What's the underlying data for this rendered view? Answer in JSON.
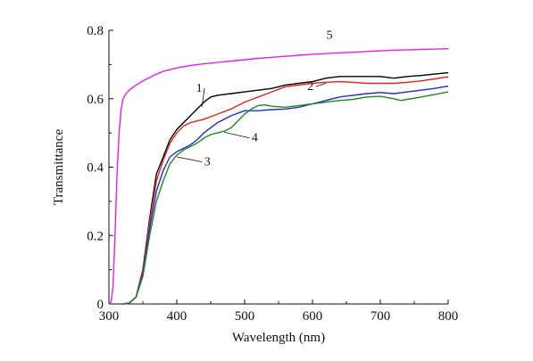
{
  "chart_data": {
    "type": "line",
    "title": "",
    "xlabel": "Wavelength (nm)",
    "ylabel": "Transmittance",
    "xlim": [
      300,
      800
    ],
    "ylim": [
      0,
      0.8
    ],
    "x_ticks": [
      "300",
      "400",
      "500",
      "600",
      "700",
      "800"
    ],
    "y_ticks": [
      "0",
      "0.2",
      "0.4",
      "0.6",
      "0.8"
    ],
    "grid": false,
    "series": [
      {
        "name": "1",
        "color": "#000000",
        "points": [
          [
            320,
            0
          ],
          [
            330,
            0.003
          ],
          [
            340,
            0.02
          ],
          [
            350,
            0.1
          ],
          [
            360,
            0.25
          ],
          [
            370,
            0.38
          ],
          [
            380,
            0.43
          ],
          [
            390,
            0.48
          ],
          [
            400,
            0.51
          ],
          [
            410,
            0.53
          ],
          [
            420,
            0.55
          ],
          [
            430,
            0.57
          ],
          [
            440,
            0.59
          ],
          [
            450,
            0.605
          ],
          [
            460,
            0.61
          ],
          [
            480,
            0.615
          ],
          [
            500,
            0.62
          ],
          [
            520,
            0.625
          ],
          [
            540,
            0.63
          ],
          [
            560,
            0.64
          ],
          [
            580,
            0.645
          ],
          [
            600,
            0.65
          ],
          [
            620,
            0.66
          ],
          [
            640,
            0.665
          ],
          [
            660,
            0.665
          ],
          [
            680,
            0.665
          ],
          [
            700,
            0.665
          ],
          [
            720,
            0.66
          ],
          [
            740,
            0.665
          ],
          [
            760,
            0.668
          ],
          [
            780,
            0.672
          ],
          [
            800,
            0.676
          ]
        ]
      },
      {
        "name": "2",
        "color": "#e8231f",
        "points": [
          [
            320,
            0
          ],
          [
            330,
            0.002
          ],
          [
            340,
            0.02
          ],
          [
            350,
            0.1
          ],
          [
            360,
            0.24
          ],
          [
            370,
            0.36
          ],
          [
            380,
            0.42
          ],
          [
            390,
            0.47
          ],
          [
            400,
            0.5
          ],
          [
            410,
            0.52
          ],
          [
            420,
            0.53
          ],
          [
            430,
            0.535
          ],
          [
            440,
            0.54
          ],
          [
            460,
            0.555
          ],
          [
            480,
            0.57
          ],
          [
            500,
            0.59
          ],
          [
            520,
            0.605
          ],
          [
            540,
            0.62
          ],
          [
            560,
            0.635
          ],
          [
            580,
            0.64
          ],
          [
            600,
            0.645
          ],
          [
            620,
            0.648
          ],
          [
            640,
            0.65
          ],
          [
            660,
            0.648
          ],
          [
            680,
            0.645
          ],
          [
            700,
            0.645
          ],
          [
            720,
            0.645
          ],
          [
            740,
            0.648
          ],
          [
            760,
            0.652
          ],
          [
            780,
            0.658
          ],
          [
            800,
            0.664
          ]
        ]
      },
      {
        "name": "3",
        "color": "#1f2ad6",
        "points": [
          [
            320,
            0
          ],
          [
            330,
            0.002
          ],
          [
            340,
            0.02
          ],
          [
            350,
            0.09
          ],
          [
            360,
            0.22
          ],
          [
            370,
            0.33
          ],
          [
            380,
            0.39
          ],
          [
            390,
            0.43
          ],
          [
            400,
            0.445
          ],
          [
            410,
            0.455
          ],
          [
            420,
            0.465
          ],
          [
            430,
            0.48
          ],
          [
            440,
            0.5
          ],
          [
            460,
            0.53
          ],
          [
            480,
            0.55
          ],
          [
            500,
            0.565
          ],
          [
            520,
            0.565
          ],
          [
            540,
            0.568
          ],
          [
            560,
            0.57
          ],
          [
            580,
            0.575
          ],
          [
            600,
            0.585
          ],
          [
            620,
            0.595
          ],
          [
            640,
            0.605
          ],
          [
            660,
            0.61
          ],
          [
            680,
            0.615
          ],
          [
            700,
            0.618
          ],
          [
            720,
            0.615
          ],
          [
            740,
            0.62
          ],
          [
            760,
            0.625
          ],
          [
            780,
            0.63
          ],
          [
            800,
            0.637
          ]
        ]
      },
      {
        "name": "4",
        "color": "#1f8a1f",
        "points": [
          [
            320,
            0
          ],
          [
            330,
            0.002
          ],
          [
            340,
            0.02
          ],
          [
            350,
            0.08
          ],
          [
            360,
            0.2
          ],
          [
            370,
            0.3
          ],
          [
            380,
            0.36
          ],
          [
            390,
            0.41
          ],
          [
            400,
            0.435
          ],
          [
            410,
            0.45
          ],
          [
            420,
            0.46
          ],
          [
            430,
            0.47
          ],
          [
            440,
            0.485
          ],
          [
            450,
            0.495
          ],
          [
            460,
            0.5
          ],
          [
            470,
            0.505
          ],
          [
            480,
            0.515
          ],
          [
            490,
            0.535
          ],
          [
            500,
            0.555
          ],
          [
            510,
            0.57
          ],
          [
            520,
            0.58
          ],
          [
            530,
            0.582
          ],
          [
            540,
            0.578
          ],
          [
            560,
            0.575
          ],
          [
            580,
            0.58
          ],
          [
            600,
            0.585
          ],
          [
            620,
            0.59
          ],
          [
            640,
            0.595
          ],
          [
            660,
            0.598
          ],
          [
            680,
            0.605
          ],
          [
            700,
            0.607
          ],
          [
            720,
            0.6
          ],
          [
            730,
            0.595
          ],
          [
            740,
            0.598
          ],
          [
            760,
            0.605
          ],
          [
            780,
            0.612
          ],
          [
            800,
            0.62
          ]
        ]
      },
      {
        "name": "5",
        "color": "#e81fe8",
        "points": [
          [
            300,
            0
          ],
          [
            303,
            0.005
          ],
          [
            306,
            0.05
          ],
          [
            309,
            0.2
          ],
          [
            312,
            0.38
          ],
          [
            315,
            0.5
          ],
          [
            318,
            0.57
          ],
          [
            321,
            0.6
          ],
          [
            325,
            0.615
          ],
          [
            330,
            0.625
          ],
          [
            340,
            0.64
          ],
          [
            350,
            0.652
          ],
          [
            360,
            0.662
          ],
          [
            370,
            0.672
          ],
          [
            380,
            0.68
          ],
          [
            400,
            0.69
          ],
          [
            420,
            0.697
          ],
          [
            440,
            0.702
          ],
          [
            460,
            0.706
          ],
          [
            480,
            0.71
          ],
          [
            500,
            0.714
          ],
          [
            520,
            0.718
          ],
          [
            540,
            0.721
          ],
          [
            560,
            0.724
          ],
          [
            580,
            0.727
          ],
          [
            600,
            0.73
          ],
          [
            620,
            0.732
          ],
          [
            640,
            0.734
          ],
          [
            660,
            0.736
          ],
          [
            680,
            0.738
          ],
          [
            700,
            0.74
          ],
          [
            720,
            0.742
          ],
          [
            740,
            0.743
          ],
          [
            760,
            0.744
          ],
          [
            780,
            0.745
          ],
          [
            800,
            0.746
          ]
        ]
      }
    ],
    "annotations": [
      {
        "text": "1",
        "x": 433,
        "y": 0.62,
        "leader_to": [
          437,
          0.575
        ]
      },
      {
        "text": "2",
        "x": 597,
        "y": 0.625,
        "leader_to": [
          620,
          0.645
        ]
      },
      {
        "text": "3",
        "x": 445,
        "y": 0.405,
        "leader_to": [
          400,
          0.43
        ]
      },
      {
        "text": "4",
        "x": 515,
        "y": 0.475,
        "leader_to": [
          470,
          0.502
        ]
      },
      {
        "text": "5",
        "x": 625,
        "y": 0.775
      }
    ]
  }
}
